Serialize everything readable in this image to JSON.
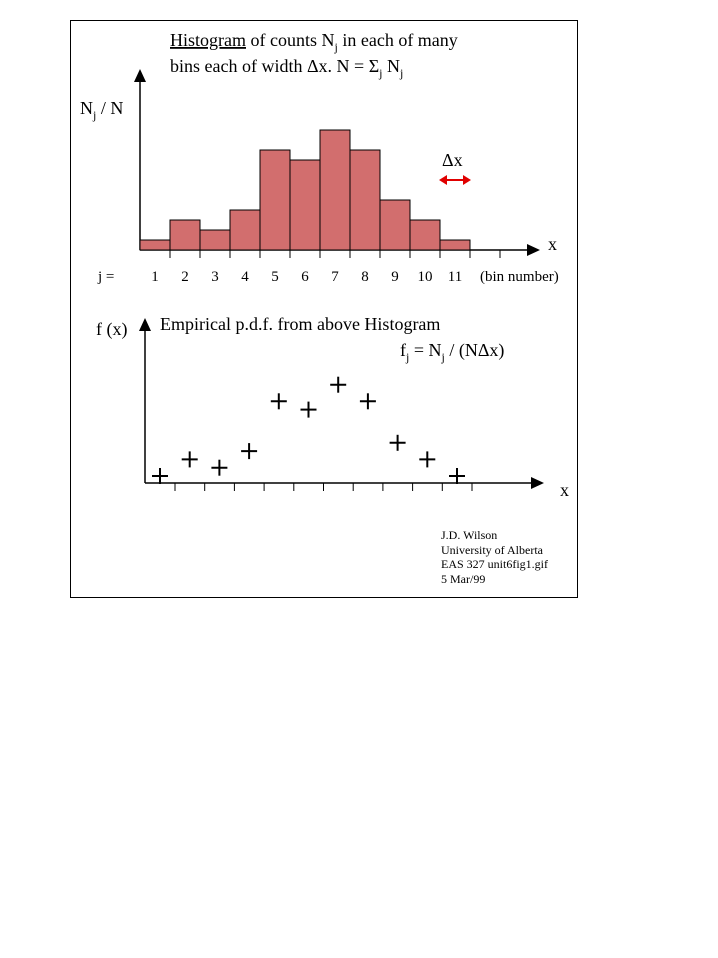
{
  "colors": {
    "bar_fill": "#d26e6e",
    "bar_stroke": "#000000",
    "arrow_red": "#e00000",
    "axis": "#000000"
  },
  "histogram": {
    "title_word": "Histogram",
    "title_rest_1": " of counts N",
    "title_sub_j": "j",
    "title_rest_2": " in each of many",
    "line2_a": "bins each of width Δx. N = Σ",
    "line2_sub_j": "j",
    "line2_b": " N",
    "line2_sub_j2": "j",
    "ylabel_main": "N",
    "ylabel_sub": "j",
    "ylabel_rest": " / N",
    "xlabel": "x",
    "dx_label": "Δx",
    "j_label": "j =",
    "bin_number_label": "(bin number)"
  },
  "pdf": {
    "ylabel": "f (x)",
    "title": "Empirical p.d.f. from above Histogram",
    "formula_f": "f",
    "formula_sub_j": "j",
    "formula_mid": " = N",
    "formula_sub_j2": "j",
    "formula_end": " / (NΔx)",
    "xlabel": "x"
  },
  "credit": {
    "line1": "J.D. Wilson",
    "line2": "University of Alberta",
    "line3": "EAS 327 unit6fig1.gif",
    "line4": "5 Mar/99"
  },
  "chart_data": [
    {
      "type": "bar",
      "categories": [
        "1",
        "2",
        "3",
        "4",
        "5",
        "6",
        "7",
        "8",
        "9",
        "10",
        "11"
      ],
      "values": [
        1,
        3,
        2,
        4,
        10,
        9,
        12,
        10,
        5,
        3,
        1
      ],
      "xlabel": "x",
      "ylabel": "Nj / N",
      "ylim": [
        0,
        13
      ]
    },
    {
      "type": "scatter",
      "x": [
        1,
        2,
        3,
        4,
        5,
        6,
        7,
        8,
        9,
        10,
        11
      ],
      "y": [
        1,
        3,
        2,
        4,
        10,
        9,
        12,
        10,
        5,
        3,
        1
      ],
      "xlabel": "x",
      "ylabel": "f (x)",
      "ylim": [
        0,
        13
      ]
    }
  ]
}
